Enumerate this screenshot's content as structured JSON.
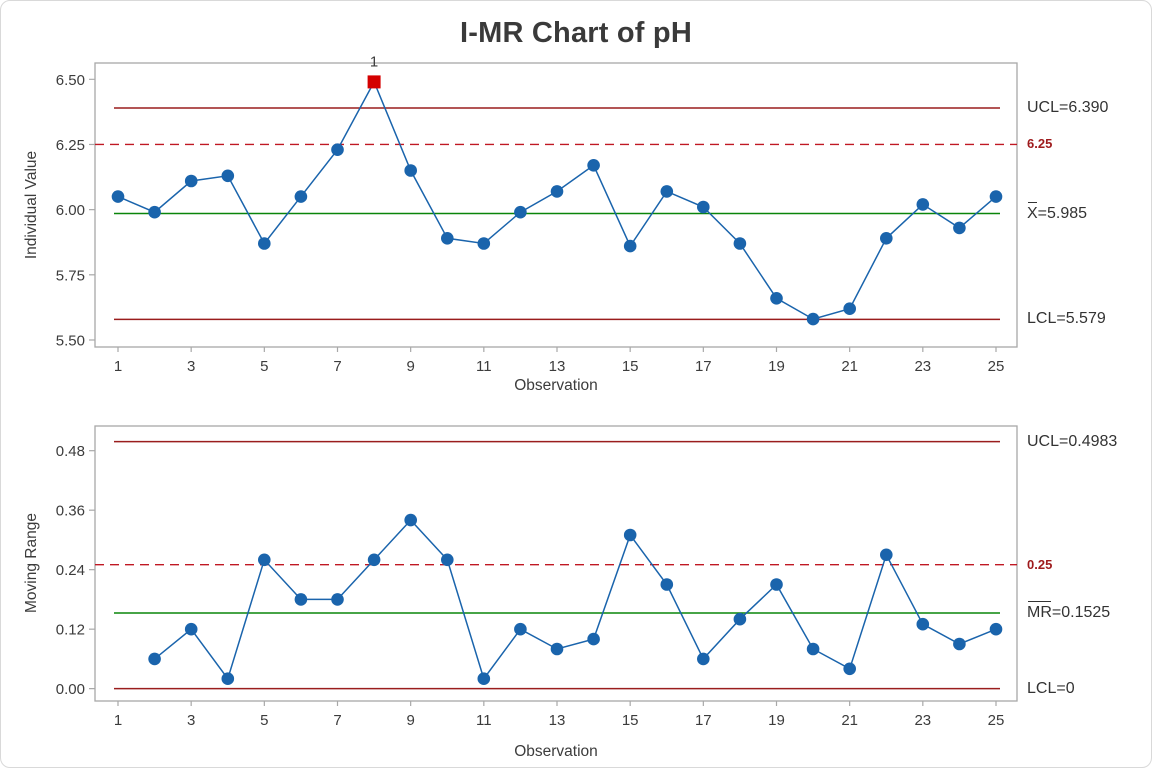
{
  "title": "I-MR Chart of pH",
  "colors": {
    "series_blue": "#1a64ac",
    "limit_red": "#9a1d1d",
    "spec_red": "#c01823",
    "center_green": "#0a850a",
    "ooc_red": "#d40000",
    "ooc_flag_gray": "#595959",
    "axis_gray": "#a8a8a8",
    "text_dark": "#3c3c3c"
  },
  "chart_data": [
    {
      "type": "line",
      "subtype": "control-chart-individuals",
      "name": "individuals",
      "ylabel": "Individual Value",
      "xlabel": "Observation",
      "x": [
        1,
        2,
        3,
        4,
        5,
        6,
        7,
        8,
        9,
        10,
        11,
        12,
        13,
        14,
        15,
        16,
        17,
        18,
        19,
        20,
        21,
        22,
        23,
        24,
        25
      ],
      "values": [
        6.05,
        5.99,
        6.11,
        6.13,
        5.87,
        6.05,
        6.23,
        6.49,
        6.15,
        5.89,
        5.87,
        5.99,
        6.07,
        6.17,
        5.86,
        6.07,
        6.01,
        5.87,
        5.66,
        5.58,
        5.62,
        5.89,
        6.02,
        5.93,
        6.05
      ],
      "xticks": [
        1,
        3,
        5,
        7,
        9,
        11,
        13,
        15,
        17,
        19,
        21,
        23,
        25
      ],
      "yticks": [
        "6.50",
        "6.25",
        "6.00",
        "5.75",
        "5.50"
      ],
      "ylim": [
        5.4731,
        6.5625
      ],
      "ucl": {
        "value": 6.39,
        "label": "UCL=6.390"
      },
      "center_line": {
        "value": 5.985,
        "label_overline": "X",
        "label": "=5.985"
      },
      "lcl": {
        "value": 5.579,
        "label": "LCL=5.579"
      },
      "spec_line": {
        "value": 6.25,
        "label": "6.25",
        "style": "dashed"
      },
      "out_of_control": [
        {
          "x": 8,
          "value": 6.49,
          "label": "1"
        }
      ]
    },
    {
      "type": "line",
      "subtype": "control-chart-moving-range",
      "name": "moving-range",
      "ylabel": "Moving Range",
      "xlabel": "Observation",
      "x": [
        2,
        3,
        4,
        5,
        6,
        7,
        8,
        9,
        10,
        11,
        12,
        13,
        14,
        15,
        16,
        17,
        18,
        19,
        20,
        21,
        22,
        23,
        24,
        25
      ],
      "values": [
        0.06,
        0.12,
        0.02,
        0.26,
        0.18,
        0.18,
        0.26,
        0.34,
        0.26,
        0.02,
        0.12,
        0.08,
        0.1,
        0.31,
        0.21,
        0.06,
        0.14,
        0.21,
        0.08,
        0.04,
        0.27,
        0.13,
        0.09,
        0.12
      ],
      "xticks": [
        1,
        3,
        5,
        7,
        9,
        11,
        13,
        15,
        17,
        19,
        21,
        23,
        25
      ],
      "yticks": [
        "0.48",
        "0.36",
        "0.24",
        "0.12",
        "0.00"
      ],
      "ylim": [
        -0.0249,
        0.5298
      ],
      "ucl": {
        "value": 0.4983,
        "label": "UCL=0.4983"
      },
      "center_line": {
        "value": 0.1525,
        "label_overline": "MR",
        "label": "=0.1525"
      },
      "lcl": {
        "value": 0,
        "label": "LCL=0"
      },
      "spec_line": {
        "value": 0.25,
        "label": "0.25",
        "style": "dashed"
      },
      "out_of_control": []
    }
  ]
}
